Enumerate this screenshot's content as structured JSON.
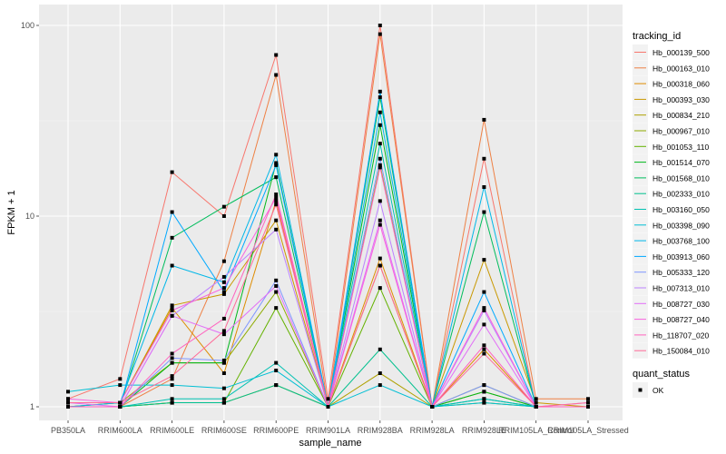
{
  "chart_data": {
    "type": "line",
    "title": "",
    "xlabel": "sample_name",
    "ylabel": "FPKM + 1",
    "y_scale": "log10",
    "ylim": [
      1,
      100
    ],
    "y_ticks": [
      1,
      10,
      100
    ],
    "y_tick_labels": [
      "1",
      "10",
      "100"
    ],
    "grid": true,
    "legend_position": "right",
    "categories": [
      "PB350LA",
      "RRIM600LA",
      "RRIM600LE",
      "RRIM600SE",
      "RRIM600PE",
      "RRIM901LA",
      "RRIM928BA",
      "RRIM928LA",
      "RRIM928LE",
      "RRIM105LA_Control",
      "RRIM105LA_Stressed"
    ],
    "colour_legend_title": "tracking_id",
    "shape_legend_title": "quant_status",
    "shape_legend_label": "OK",
    "series": [
      {
        "name": "Hb_000139_500",
        "color": "#F8766D",
        "values": [
          1.1,
          1.4,
          17,
          10,
          70,
          1.1,
          100,
          1.0,
          20,
          1.0,
          1.0
        ]
      },
      {
        "name": "Hb_000163_010",
        "color": "#EE8044",
        "values": [
          1.0,
          1.0,
          1.4,
          5.8,
          55,
          1.0,
          90,
          1.0,
          32,
          1.1,
          1.1
        ]
      },
      {
        "name": "Hb_000318_060",
        "color": "#DE8C00",
        "values": [
          1.05,
          1.05,
          3.3,
          1.5,
          12,
          1.0,
          6,
          1.0,
          2.0,
          1.0,
          1.0
        ]
      },
      {
        "name": "Hb_000393_030",
        "color": "#C99800",
        "values": [
          1.0,
          1.05,
          3.4,
          3.9,
          9.5,
          1.0,
          5.5,
          1.0,
          5.9,
          1.05,
          1.0
        ]
      },
      {
        "name": "Hb_000834_210",
        "color": "#AFA100",
        "values": [
          1.0,
          1.0,
          1.05,
          1.05,
          1.3,
          1.0,
          1.5,
          1.0,
          1.2,
          1.0,
          1.0
        ]
      },
      {
        "name": "Hb_000967_010",
        "color": "#8EAB00",
        "values": [
          1.0,
          1.05,
          1.7,
          1.7,
          4.0,
          1.0,
          18.5,
          1.0,
          1.3,
          1.0,
          1.0
        ]
      },
      {
        "name": "Hb_001053_110",
        "color": "#64B200",
        "values": [
          1.0,
          1.0,
          1.05,
          1.05,
          3.3,
          1.0,
          4.2,
          1.0,
          1.05,
          1.0,
          1.0
        ]
      },
      {
        "name": "Hb_001514_070",
        "color": "#00B81B",
        "values": [
          1.0,
          1.0,
          1.7,
          1.7,
          19,
          1.0,
          30,
          1.0,
          1.2,
          1.0,
          1.0
        ]
      },
      {
        "name": "Hb_001568_010",
        "color": "#00BD5C",
        "values": [
          1.0,
          1.0,
          7.7,
          11.2,
          16,
          1.0,
          42,
          1.0,
          10.5,
          1.0,
          1.0
        ]
      },
      {
        "name": "Hb_002333_010",
        "color": "#00C08E",
        "values": [
          1.0,
          1.0,
          1.05,
          1.05,
          1.3,
          1.0,
          2.0,
          1.0,
          1.1,
          1.0,
          1.0
        ]
      },
      {
        "name": "Hb_003160_050",
        "color": "#00C1B2",
        "values": [
          1.0,
          1.0,
          1.1,
          1.1,
          1.7,
          1.0,
          24,
          1.0,
          1.1,
          1.0,
          1.0
        ]
      },
      {
        "name": "Hb_003398_090",
        "color": "#00BFD4",
        "values": [
          1.2,
          1.3,
          1.3,
          1.25,
          1.55,
          1.0,
          1.3,
          1.0,
          1.05,
          1.0,
          1.0
        ]
      },
      {
        "name": "Hb_003768_100",
        "color": "#00B7E8",
        "values": [
          1.0,
          1.05,
          5.5,
          4.5,
          21,
          1.0,
          35,
          1.0,
          14.2,
          1.0,
          1.0
        ]
      },
      {
        "name": "Hb_003913_060",
        "color": "#00A9FF",
        "values": [
          1.0,
          1.0,
          10.5,
          4.0,
          18.5,
          1.0,
          45,
          1.0,
          4.0,
          1.0,
          1.0
        ]
      },
      {
        "name": "Hb_005333_120",
        "color": "#7F96FF",
        "values": [
          1.0,
          1.0,
          1.8,
          1.75,
          4.6,
          1.0,
          20,
          1.0,
          1.3,
          1.0,
          1.0
        ]
      },
      {
        "name": "Hb_007313_010",
        "color": "#BC81FF",
        "values": [
          1.0,
          1.0,
          3.0,
          4.8,
          8.5,
          1.0,
          12,
          1.0,
          3.2,
          1.0,
          1.0
        ]
      },
      {
        "name": "Hb_008727_030",
        "color": "#E26EF7",
        "values": [
          1.05,
          1.0,
          3.0,
          2.4,
          4.3,
          1.0,
          9.5,
          1.0,
          2.7,
          1.0,
          1.05
        ]
      },
      {
        "name": "Hb_008727_040",
        "color": "#F863DF",
        "values": [
          1.1,
          1.05,
          3.2,
          4.2,
          12.5,
          1.0,
          9,
          1.0,
          3.3,
          1.0,
          1.0
        ]
      },
      {
        "name": "Hb_118707_020",
        "color": "#FF62BF",
        "values": [
          1.0,
          1.0,
          1.9,
          2.9,
          13,
          1.0,
          18,
          1.0,
          2.1,
          1.0,
          1.0
        ]
      },
      {
        "name": "Hb_150084_010",
        "color": "#FF6A98",
        "values": [
          1.05,
          1.05,
          1.45,
          2.5,
          11.5,
          1.0,
          5.5,
          1.0,
          1.9,
          1.0,
          1.05
        ]
      }
    ]
  }
}
